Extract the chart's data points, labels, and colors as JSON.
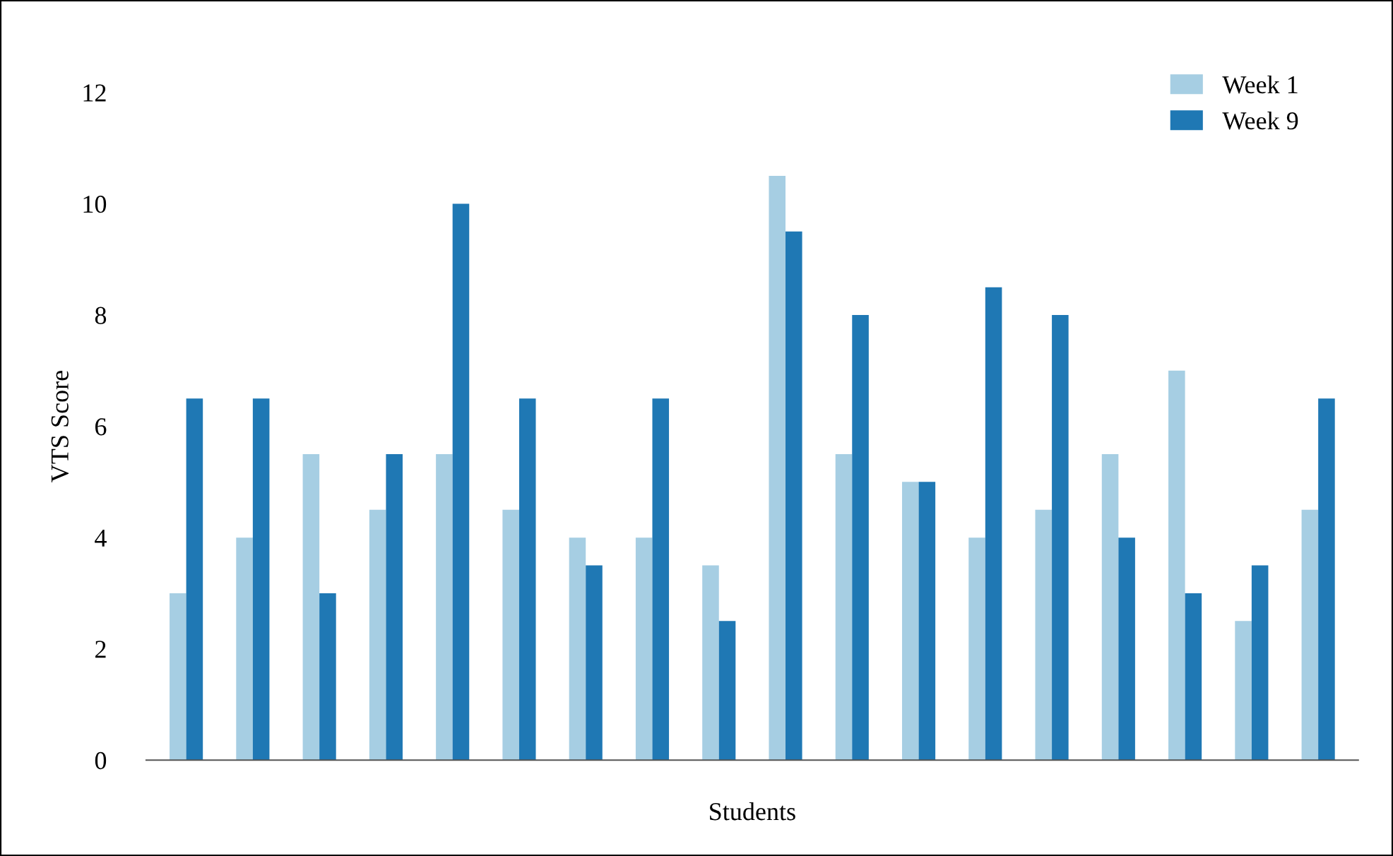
{
  "chart_data": {
    "type": "bar",
    "xlabel": "Students",
    "ylabel": "VTS Score",
    "categories": [
      null,
      null,
      null,
      null,
      null,
      null,
      null,
      null,
      null,
      null,
      null,
      null,
      null,
      null,
      null,
      null,
      null,
      null
    ],
    "series": [
      {
        "name": "Week 1",
        "color": "#a6cee3",
        "values": [
          3,
          4,
          5.5,
          4.5,
          5.5,
          4.5,
          4,
          4,
          3.5,
          10.5,
          5.5,
          5,
          4,
          4.5,
          5.5,
          7,
          2.5,
          4.5
        ]
      },
      {
        "name": "Week 9",
        "color": "#1f78b4",
        "values": [
          6.5,
          6.5,
          3,
          5.5,
          10,
          6.5,
          3.5,
          6.5,
          2.5,
          9.5,
          8,
          5,
          8.5,
          8,
          4,
          3,
          3.5,
          6.5
        ]
      }
    ],
    "ylim": [
      0,
      12
    ],
    "yticks": [
      0,
      2,
      4,
      6,
      8,
      10,
      12
    ],
    "grid": false,
    "legend": "top right"
  }
}
